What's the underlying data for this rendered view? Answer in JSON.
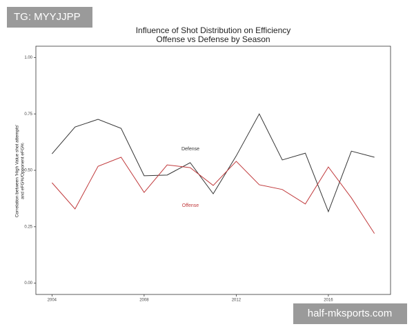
{
  "chart_data": {
    "type": "line",
    "title": "Influence of Shot Distribution on Efficiency",
    "subtitle": "Offense vs Defense by Season",
    "y_label": [
      "Correlation between 'High Value shot attempts'",
      "and eFG%/Opponent eFG%"
    ],
    "x": [
      2004,
      2005,
      2006,
      2007,
      2008,
      2009,
      2010,
      2011,
      2012,
      2013,
      2014,
      2015,
      2016,
      2017,
      2018
    ],
    "series": [
      {
        "name": "Defense",
        "color": "#333333",
        "values": [
          0.573,
          0.692,
          0.726,
          0.686,
          0.476,
          0.479,
          0.534,
          0.396,
          0.564,
          0.75,
          0.546,
          0.576,
          0.317,
          0.585,
          0.558
        ]
      },
      {
        "name": "Offense",
        "color": "#c0393b",
        "values": [
          0.445,
          0.329,
          0.518,
          0.558,
          0.402,
          0.524,
          0.512,
          0.433,
          0.54,
          0.436,
          0.415,
          0.351,
          0.515,
          0.378,
          0.22
        ]
      }
    ],
    "xlim": [
      2003.3,
      2018.7
    ],
    "xticks": [
      2004,
      2008,
      2012,
      2016
    ],
    "ylim": [
      -0.05,
      1.05
    ],
    "yticks": [
      {
        "value": 0,
        "label": "0.00"
      },
      {
        "value": 0.25,
        "label": "0.25"
      },
      {
        "value": 0.5,
        "label": "0.50"
      },
      {
        "value": 0.75,
        "label": "0.75"
      },
      {
        "value": 1,
        "label": "1.00"
      }
    ]
  },
  "watermarks": [
    "TG: MYYJJPP",
    "half-mksports.com"
  ]
}
